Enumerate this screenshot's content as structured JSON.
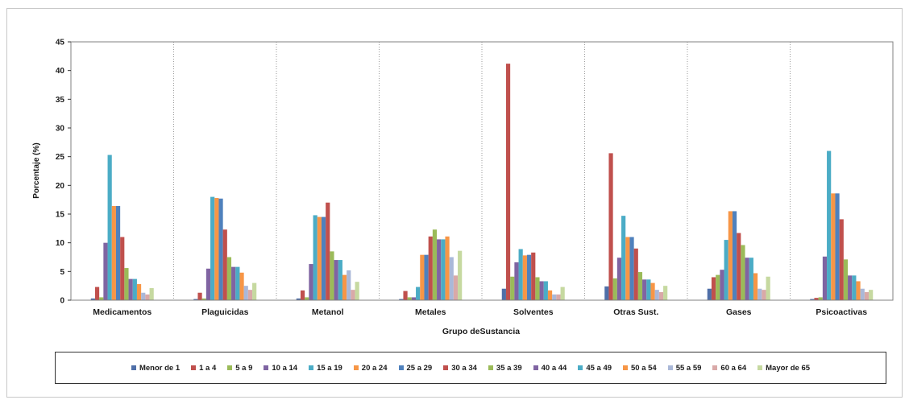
{
  "chart_data": {
    "type": "bar",
    "title": "",
    "xlabel": "Grupo deSustancia",
    "ylabel": "Porcentaje (%)",
    "ylim": [
      0,
      45
    ],
    "yticks": [
      0,
      5,
      10,
      15,
      20,
      25,
      30,
      35,
      40,
      45
    ],
    "grid": false,
    "legend_position": "bottom",
    "categories": [
      "Medicamentos",
      "Plaguicidas",
      "Metanol",
      "Metales",
      "Solventes",
      "Otras Sust.",
      "Gases",
      "Psicoactivas"
    ],
    "series": [
      {
        "name": "Menor de 1",
        "color": "#4f6fa8",
        "values": [
          0.3,
          0.2,
          0.3,
          0.2,
          2.0,
          2.4,
          2.0,
          0.2
        ]
      },
      {
        "name": "1 a 4",
        "color": "#c0504d",
        "values": [
          2.3,
          1.3,
          1.7,
          1.6,
          41.2,
          25.6,
          4.0,
          0.4
        ]
      },
      {
        "name": "5 a 9",
        "color": "#9bbb59",
        "values": [
          0.5,
          0.3,
          0.5,
          0.5,
          4.1,
          3.8,
          4.4,
          0.5
        ]
      },
      {
        "name": "10 a 14",
        "color": "#7f64a2",
        "values": [
          10.0,
          5.5,
          6.3,
          0.5,
          6.6,
          7.4,
          5.3,
          7.6
        ]
      },
      {
        "name": "15 a 19",
        "color": "#4bacc6",
        "values": [
          25.3,
          18.0,
          14.8,
          2.3,
          8.9,
          14.7,
          10.5,
          26.0
        ]
      },
      {
        "name": "20 a 24",
        "color": "#f79646",
        "values": [
          16.4,
          17.8,
          14.5,
          7.9,
          7.8,
          11.0,
          15.5,
          18.6
        ]
      },
      {
        "name": "25 a 29",
        "color": "#4f81bd",
        "values": [
          16.4,
          17.7,
          14.5,
          7.9,
          7.9,
          11.0,
          15.5,
          18.6
        ]
      },
      {
        "name": "30 a 34",
        "color": "#c0504d",
        "values": [
          11.0,
          12.3,
          17.0,
          11.1,
          8.3,
          9.0,
          11.7,
          14.1
        ]
      },
      {
        "name": "35 a 39",
        "color": "#9bbb59",
        "values": [
          5.6,
          7.5,
          8.5,
          12.3,
          4.0,
          4.9,
          9.6,
          7.1
        ]
      },
      {
        "name": "40 a 44",
        "color": "#8064a2",
        "values": [
          3.7,
          5.8,
          7.0,
          10.6,
          3.3,
          3.6,
          7.4,
          4.3
        ]
      },
      {
        "name": "45 a 49",
        "color": "#4bacc6",
        "values": [
          3.7,
          5.8,
          7.0,
          10.6,
          3.3,
          3.6,
          7.4,
          4.3
        ]
      },
      {
        "name": "50 a 54",
        "color": "#f79646",
        "values": [
          2.8,
          4.8,
          4.4,
          11.1,
          1.7,
          3.0,
          4.7,
          3.3
        ]
      },
      {
        "name": "55 a 59",
        "color": "#aab8d8",
        "values": [
          1.3,
          2.5,
          5.2,
          7.5,
          1.0,
          1.8,
          2.0,
          2.0
        ]
      },
      {
        "name": "60 a 64",
        "color": "#d9a9a8",
        "values": [
          1.0,
          1.8,
          1.8,
          4.3,
          1.0,
          1.4,
          1.8,
          1.4
        ]
      },
      {
        "name": "Mayor de 65",
        "color": "#c6d9a0",
        "values": [
          2.1,
          3.0,
          3.2,
          8.6,
          2.3,
          2.5,
          4.1,
          1.8
        ]
      }
    ]
  }
}
